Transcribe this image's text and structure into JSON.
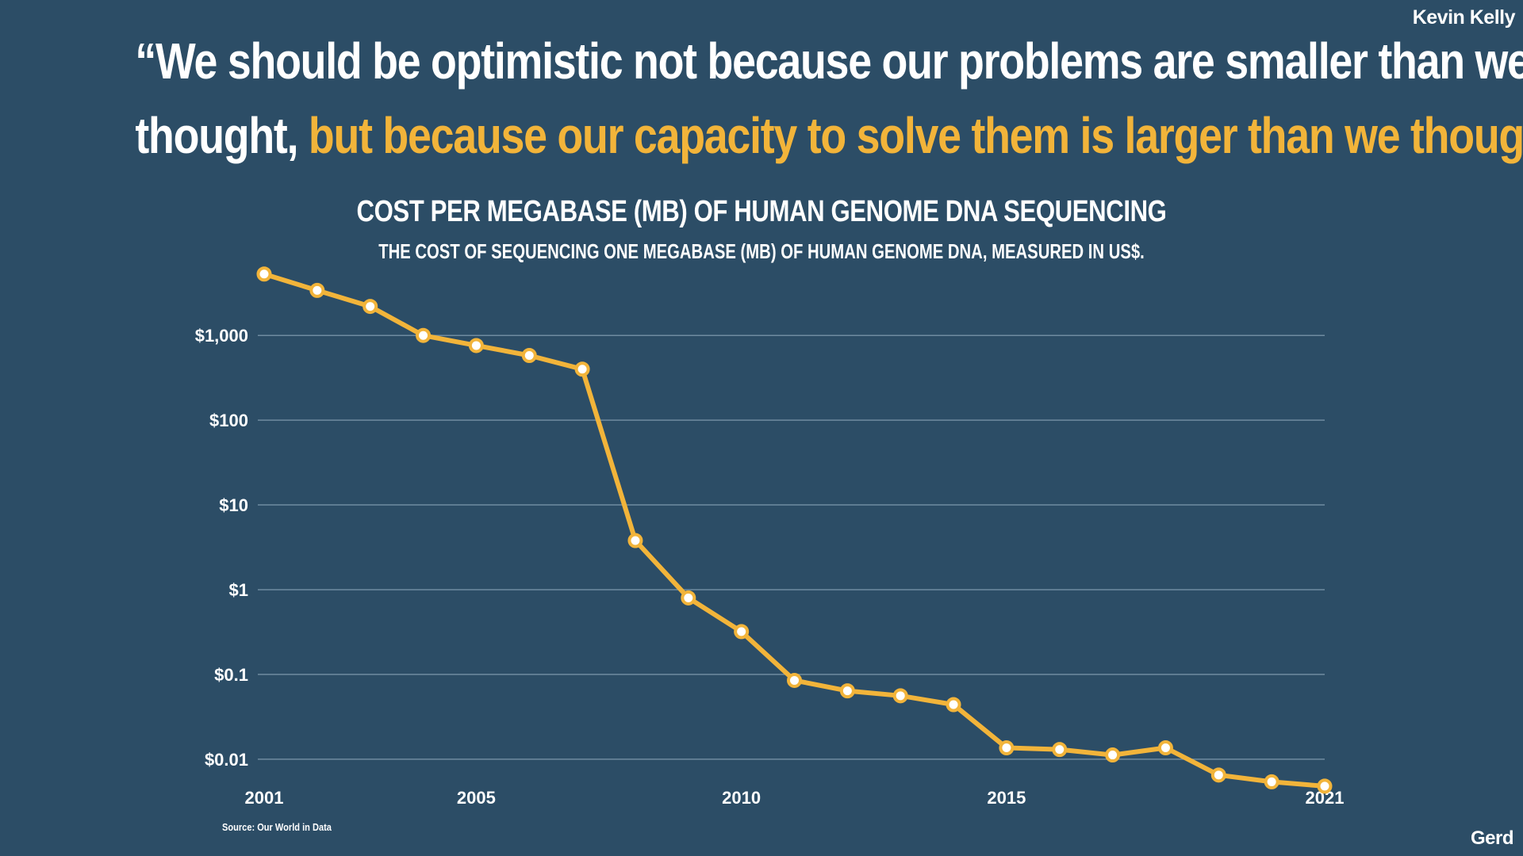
{
  "header": {
    "author": "Kevin Kelly",
    "quote_part1": "“We should be optimistic not because our problems are smaller than we",
    "quote_part2": "thought,",
    "quote_highlight": "but because our capacity to solve them is larger than we thought”"
  },
  "footer": {
    "logo": "Gerd"
  },
  "colors": {
    "background": "#2c4d66",
    "accent": "#f2b43a",
    "gridline": "#6f8ba0",
    "text": "#ffffff"
  },
  "chart_data": {
    "type": "line",
    "title": "COST PER MEGABASE (MB) OF HUMAN GENOME DNA SEQUENCING",
    "subtitle": "THE COST OF SEQUENCING ONE MEGABASE (MB) OF HUMAN GENOME DNA, MEASURED IN US$.",
    "source": "Source: Our World in Data",
    "y_scale": "log",
    "ylim": [
      0.005,
      6000
    ],
    "xlim": [
      2001,
      2021
    ],
    "grid": true,
    "y_ticks": [
      {
        "value": 1000,
        "label": "$1,000"
      },
      {
        "value": 100,
        "label": "$100"
      },
      {
        "value": 10,
        "label": "$10"
      },
      {
        "value": 1,
        "label": "$1"
      },
      {
        "value": 0.1,
        "label": "$0.1"
      },
      {
        "value": 0.01,
        "label": "$0.01"
      }
    ],
    "x_ticks": [
      {
        "value": 2001,
        "label": "2001"
      },
      {
        "value": 2005,
        "label": "2005"
      },
      {
        "value": 2010,
        "label": "2010"
      },
      {
        "value": 2015,
        "label": "2015"
      },
      {
        "value": 2021,
        "label": "2021"
      }
    ],
    "series": [
      {
        "points": [
          {
            "x": 2001,
            "y": 5300
          },
          {
            "x": 2002,
            "y": 3400
          },
          {
            "x": 2003,
            "y": 2200
          },
          {
            "x": 2004,
            "y": 1000
          },
          {
            "x": 2005,
            "y": 760
          },
          {
            "x": 2006,
            "y": 580
          },
          {
            "x": 2007,
            "y": 400
          },
          {
            "x": 2008,
            "y": 3.8
          },
          {
            "x": 2009,
            "y": 0.8
          },
          {
            "x": 2010,
            "y": 0.32
          },
          {
            "x": 2011,
            "y": 0.085
          },
          {
            "x": 2012,
            "y": 0.064
          },
          {
            "x": 2013,
            "y": 0.056
          },
          {
            "x": 2014,
            "y": 0.044
          },
          {
            "x": 2015,
            "y": 0.0136
          },
          {
            "x": 2016,
            "y": 0.013
          },
          {
            "x": 2017,
            "y": 0.0112
          },
          {
            "x": 2018,
            "y": 0.0136
          },
          {
            "x": 2019,
            "y": 0.0065
          },
          {
            "x": 2020,
            "y": 0.0054
          },
          {
            "x": 2021,
            "y": 0.0048
          }
        ]
      }
    ]
  }
}
